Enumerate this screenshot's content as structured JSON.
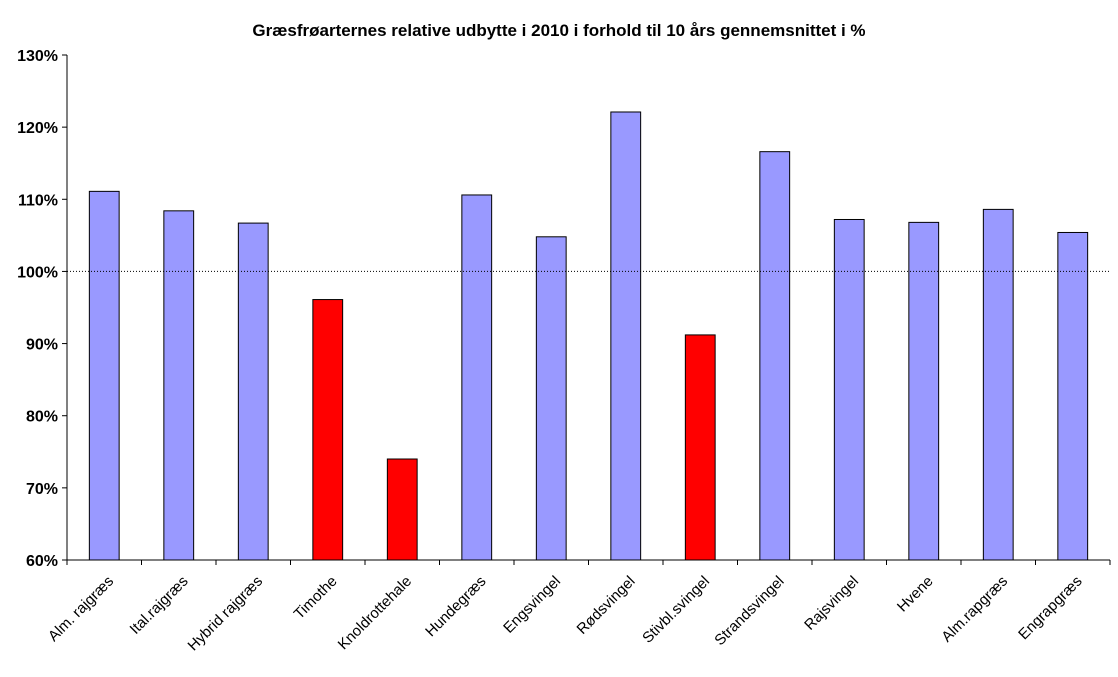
{
  "chart_data": {
    "type": "bar",
    "title": "Græsfrøarternes relative udbytte i 2010 i forhold til 10 års gennemsnittet i %",
    "xlabel": "",
    "ylabel": "",
    "categories": [
      "Alm. rajgræs",
      "Ital.rajgræs",
      "Hybrid rajgræs",
      "Timothe",
      "Knoldrottehale",
      "Hundegræs",
      "Engsvingel",
      "Rødsvingel",
      "Stivbl.svingel",
      "Strandsvingel",
      "Rajsvingel",
      "Hvene",
      "Alm.rapgræs",
      "Engrapgræs"
    ],
    "values": [
      111.1,
      108.4,
      106.7,
      96.1,
      74.0,
      110.6,
      104.8,
      122.1,
      91.2,
      116.6,
      107.2,
      106.8,
      108.6,
      105.4
    ],
    "ylim": [
      60,
      130
    ],
    "yticks": [
      60,
      70,
      80,
      90,
      100,
      110,
      120,
      130
    ],
    "ytick_labels": [
      "60%",
      "70%",
      "80%",
      "90%",
      "100%",
      "110%",
      "120%",
      "130%"
    ],
    "reference_line": 100,
    "grid": false,
    "colors": {
      "above_reference": "#9999ff",
      "below_reference": "#ff0000",
      "bar_border": "#000000",
      "reference_line": "#000000"
    }
  }
}
